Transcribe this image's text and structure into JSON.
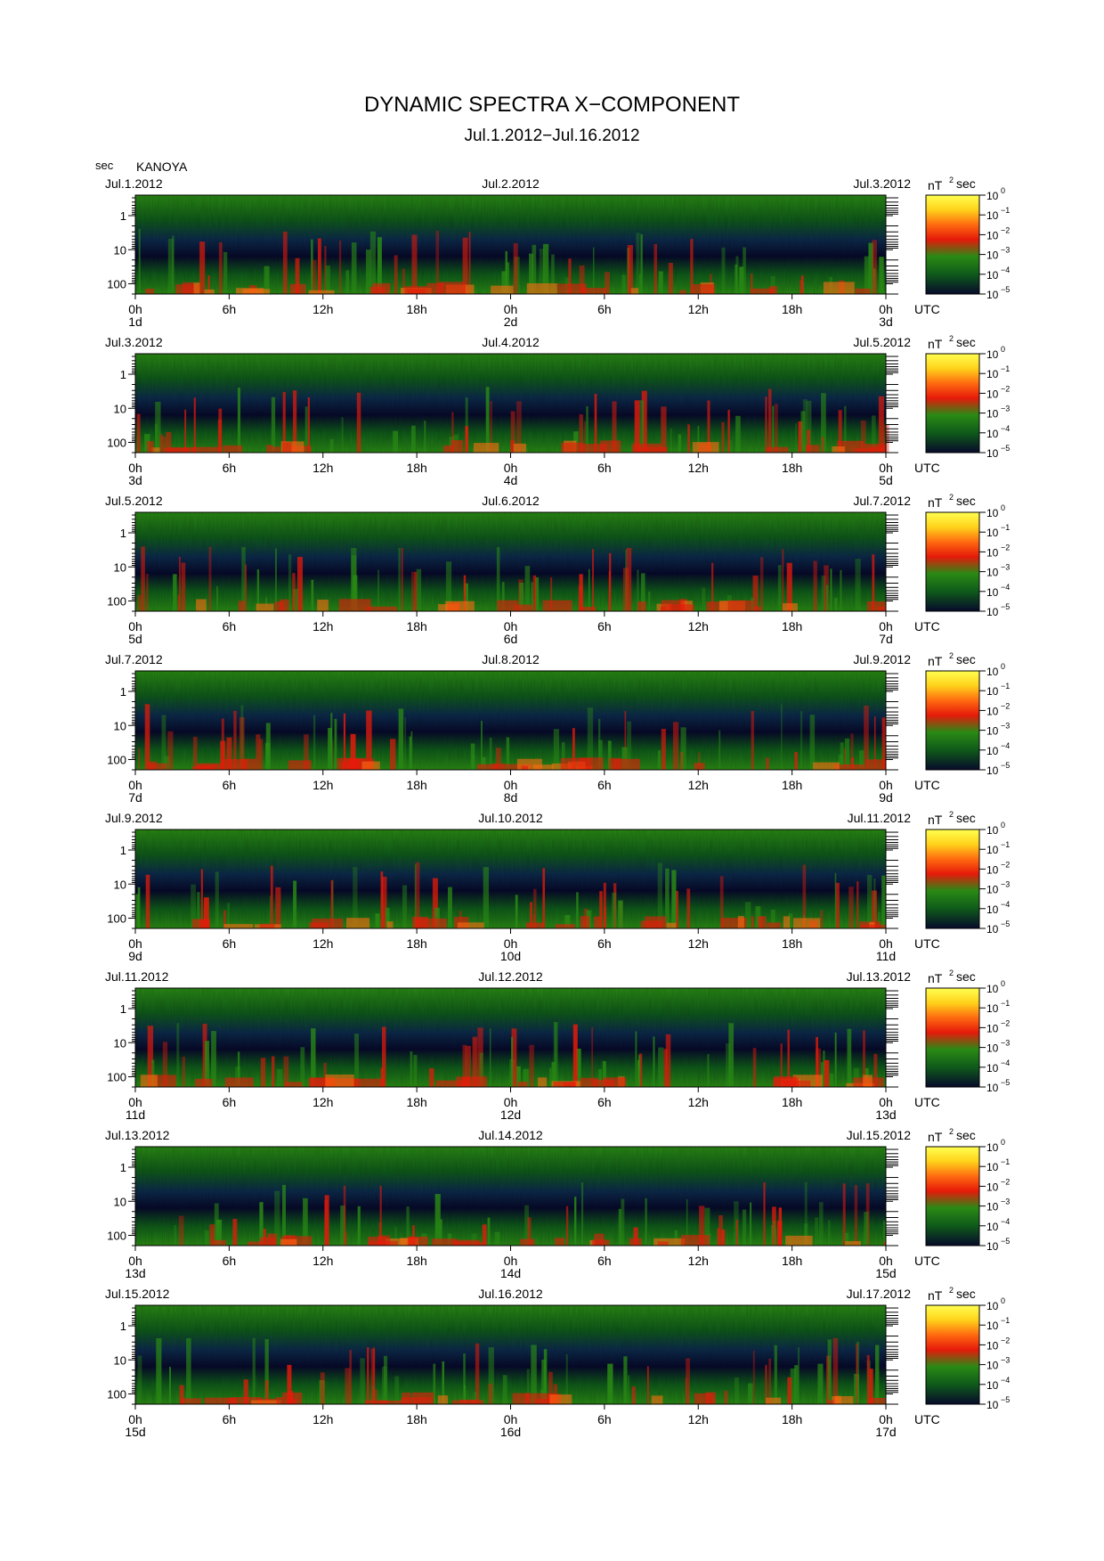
{
  "header": {
    "title": "DYNAMIC SPECTRA X−COMPONENT",
    "subtitle": "Jul.1.2012−Jul.16.2012",
    "y_unit": "sec",
    "station": "KANOYA"
  },
  "colors": {
    "scale": [
      "#070a2a",
      "#0c2a4a",
      "#0f5a1a",
      "#2a8a14",
      "#e51a0a",
      "#ff6a10",
      "#ffd21a",
      "#ffff50"
    ]
  },
  "chart_data": {
    "type": "heatmap",
    "title": "DYNAMIC SPECTRA X−COMPONENT",
    "subtitle": "Jul.1.2012−Jul.16.2012",
    "station": "KANOYA",
    "y_axis": {
      "label": "sec",
      "scale": "log",
      "ticks": [
        "1",
        "10",
        "100"
      ],
      "range": [
        0.25,
        200
      ],
      "inverted": true
    },
    "x_axis": {
      "unit": "UTC",
      "ticks": [
        "0h",
        "6h",
        "12h",
        "18h",
        "0h",
        "6h",
        "12h",
        "18h",
        "0h"
      ]
    },
    "colorbar": {
      "unit": "nT",
      "unit_sup": "2",
      "unit_suffix": "sec",
      "scale": "log",
      "base": "10",
      "exponents": [
        "0",
        "−1",
        "−2",
        "−3",
        "−4",
        "−5"
      ]
    },
    "panels": [
      {
        "start_label": "Jul.1.2012",
        "mid_label": "Jul.2.2012",
        "end_label": "Jul.3.2012",
        "day_labels": [
          "1d",
          "2d",
          "3d"
        ]
      },
      {
        "start_label": "Jul.3.2012",
        "mid_label": "Jul.4.2012",
        "end_label": "Jul.5.2012",
        "day_labels": [
          "3d",
          "4d",
          "5d"
        ]
      },
      {
        "start_label": "Jul.5.2012",
        "mid_label": "Jul.6.2012",
        "end_label": "Jul.7.2012",
        "day_labels": [
          "5d",
          "6d",
          "7d"
        ]
      },
      {
        "start_label": "Jul.7.2012",
        "mid_label": "Jul.8.2012",
        "end_label": "Jul.9.2012",
        "day_labels": [
          "7d",
          "8d",
          "9d"
        ]
      },
      {
        "start_label": "Jul.9.2012",
        "mid_label": "Jul.10.2012",
        "end_label": "Jul.11.2012",
        "day_labels": [
          "9d",
          "10d",
          "11d"
        ]
      },
      {
        "start_label": "Jul.11.2012",
        "mid_label": "Jul.12.2012",
        "end_label": "Jul.13.2012",
        "day_labels": [
          "11d",
          "12d",
          "13d"
        ]
      },
      {
        "start_label": "Jul.13.2012",
        "mid_label": "Jul.14.2012",
        "end_label": "Jul.15.2012",
        "day_labels": [
          "13d",
          "14d",
          "15d"
        ]
      },
      {
        "start_label": "Jul.15.2012",
        "mid_label": "Jul.16.2012",
        "end_label": "Jul.17.2012",
        "day_labels": [
          "15d",
          "16d",
          "17d"
        ]
      }
    ]
  }
}
